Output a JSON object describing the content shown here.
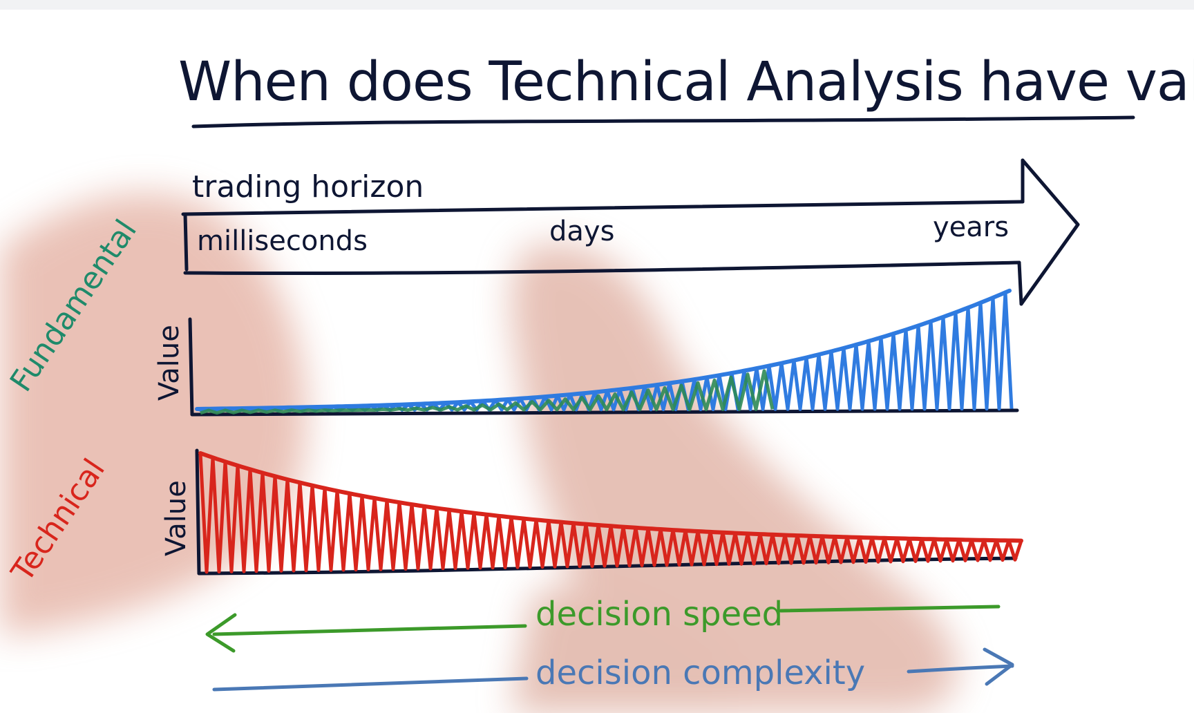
{
  "title": "When does Technical Analysis have value?",
  "horizon": {
    "label": "trading horizon",
    "ticks": [
      "milliseconds",
      "days",
      "years"
    ]
  },
  "fundamental": {
    "side_label": "Fundamental",
    "axis_label": "Value",
    "color": "#2f7be0",
    "overlay_color": "#2e8a55"
  },
  "technical": {
    "side_label": "Technical",
    "axis_label": "Value",
    "color": "#d8251c"
  },
  "decision_speed": {
    "label": "decision speed",
    "color": "#3c9a2a"
  },
  "decision_complexity": {
    "label": "decision complexity",
    "color": "#4a78b5"
  },
  "ink_color": "#0e1633",
  "fundamental_color_side": "#1f8a6a",
  "technical_color_side": "#d8251c"
}
